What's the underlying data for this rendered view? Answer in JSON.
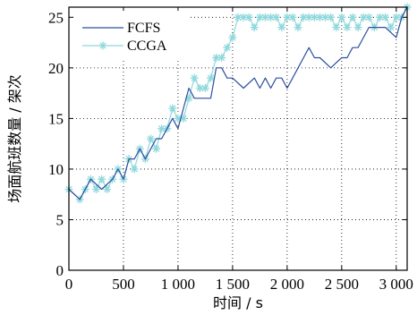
{
  "chart_data": {
    "type": "line",
    "xlabel": "时间 / s",
    "ylabel": "场面航班数量 / 架次",
    "xlim": [
      0,
      3100
    ],
    "ylim": [
      0,
      26
    ],
    "xticks": [
      0,
      500,
      1000,
      1500,
      2000,
      2500,
      3000
    ],
    "xtick_labels": [
      "0",
      "500",
      "1 000",
      "1 500",
      "2 000",
      "2 500",
      "3 000"
    ],
    "yticks": [
      0,
      5,
      10,
      15,
      20,
      25
    ],
    "ytick_labels": [
      "0",
      "5",
      "10",
      "15",
      "20",
      "25"
    ],
    "grid": true,
    "legend_position": "top-left",
    "series": [
      {
        "name": "FCFS",
        "color": "#2b4f9e",
        "marker": "none",
        "x": [
          0,
          100,
          200,
          300,
          400,
          450,
          500,
          550,
          600,
          650,
          700,
          750,
          800,
          850,
          900,
          950,
          1000,
          1050,
          1100,
          1150,
          1200,
          1300,
          1350,
          1400,
          1450,
          1500,
          1600,
          1700,
          1750,
          1800,
          1850,
          1900,
          1950,
          2000,
          2050,
          2100,
          2150,
          2200,
          2250,
          2300,
          2400,
          2500,
          2550,
          2600,
          2650,
          2700,
          2750,
          2800,
          2900,
          3000,
          3050,
          3100
        ],
        "y": [
          8,
          7,
          9,
          8,
          9,
          10,
          9,
          11,
          11,
          12,
          11,
          12,
          13,
          13,
          14,
          15,
          14,
          16,
          18,
          17,
          17,
          17,
          20,
          20,
          19,
          19,
          18,
          19,
          18,
          19,
          18,
          19,
          19,
          18,
          19,
          20,
          21,
          22,
          21,
          21,
          20,
          21,
          21,
          22,
          22,
          23,
          24,
          24,
          24,
          23,
          25,
          26
        ]
      },
      {
        "name": "CCGA",
        "color": "#8fd8dc",
        "marker": "asterisk",
        "x": [
          0,
          100,
          150,
          200,
          250,
          300,
          350,
          400,
          450,
          500,
          550,
          600,
          650,
          700,
          750,
          800,
          850,
          900,
          950,
          1000,
          1050,
          1100,
          1150,
          1200,
          1250,
          1300,
          1350,
          1400,
          1450,
          1500,
          1550,
          1600,
          1650,
          1700,
          1750,
          1800,
          1850,
          1900,
          1950,
          2000,
          2050,
          2100,
          2150,
          2200,
          2250,
          2300,
          2350,
          2400,
          2450,
          2500,
          2550,
          2600,
          2650,
          2700,
          2750,
          2800,
          2850,
          2900,
          2950,
          3000,
          3050,
          3100
        ],
        "y": [
          8,
          7,
          8,
          9,
          8,
          9,
          8,
          9,
          10,
          9,
          11,
          10,
          12,
          11,
          13,
          12,
          14,
          14,
          16,
          15,
          15,
          17,
          19,
          18,
          18,
          19,
          21,
          21,
          22,
          23,
          25,
          25,
          25,
          24,
          25,
          25,
          25,
          25,
          24,
          25,
          25,
          24,
          25,
          25,
          25,
          25,
          25,
          25,
          24,
          25,
          24,
          25,
          24,
          25,
          25,
          24,
          25,
          25,
          24,
          25,
          25,
          26
        ]
      }
    ]
  }
}
